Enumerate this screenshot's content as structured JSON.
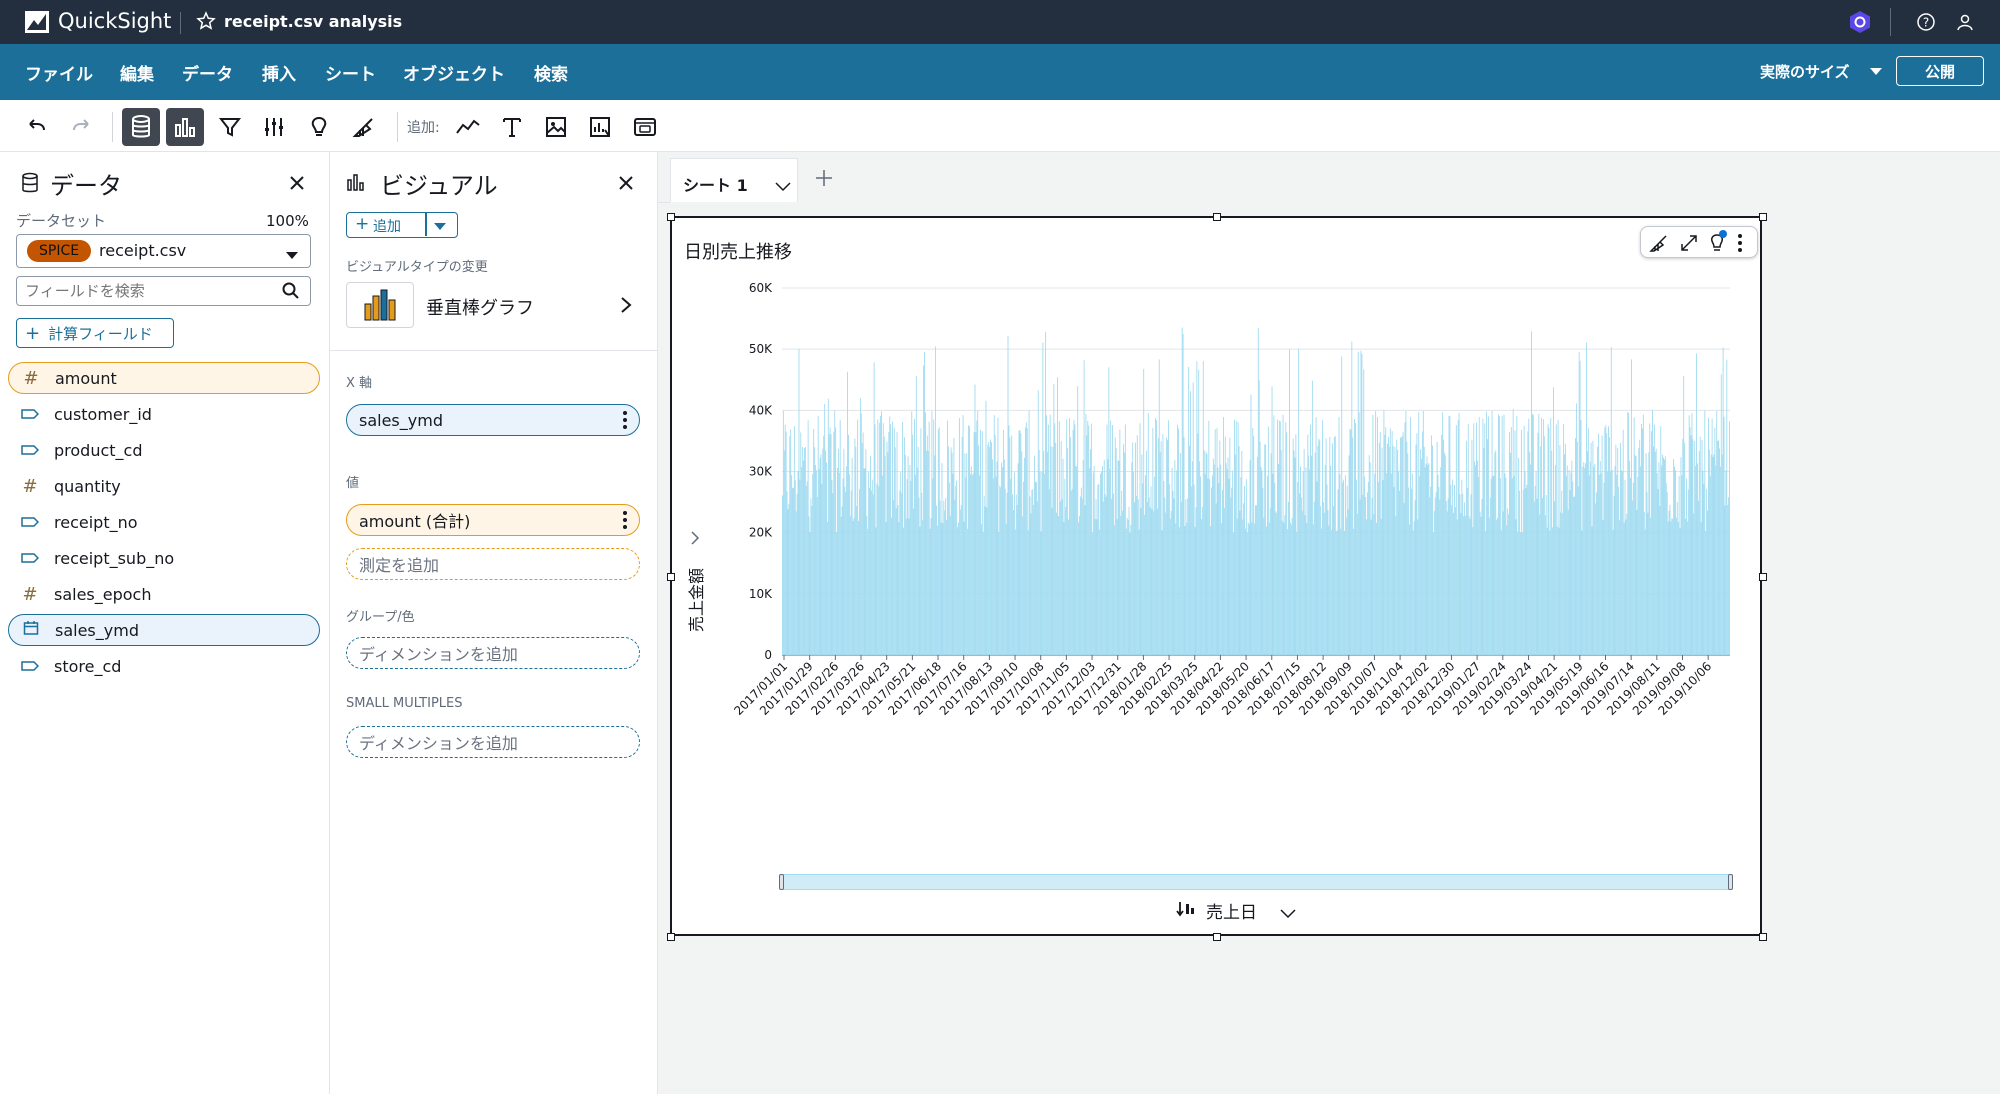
{
  "topbar": {
    "app_name": "QuickSight",
    "analysis_title": "receipt.csv analysis"
  },
  "menu": {
    "items": [
      "ファイル",
      "編集",
      "データ",
      "挿入",
      "シート",
      "オブジェクト",
      "検索"
    ],
    "size_label": "実際のサイズ",
    "publish_label": "公開"
  },
  "toolbar": {
    "add_label": "追加:"
  },
  "data_panel": {
    "title": "データ",
    "dataset_label": "データセット",
    "dataset_percent": "100%",
    "spice_badge": "SPICE",
    "dataset_name": "receipt.csv",
    "search_placeholder": "フィールドを検索",
    "calc_field_label": "計算フィールド",
    "fields": [
      {
        "name": "amount",
        "type": "measure"
      },
      {
        "name": "customer_id",
        "type": "dimension"
      },
      {
        "name": "product_cd",
        "type": "dimension"
      },
      {
        "name": "quantity",
        "type": "measure"
      },
      {
        "name": "receipt_no",
        "type": "dimension"
      },
      {
        "name": "receipt_sub_no",
        "type": "dimension"
      },
      {
        "name": "sales_epoch",
        "type": "measure"
      },
      {
        "name": "sales_ymd",
        "type": "date"
      },
      {
        "name": "store_cd",
        "type": "dimension"
      }
    ]
  },
  "visual_panel": {
    "title": "ビジュアル",
    "add_label": "追加",
    "change_type_label": "ビジュアルタイプの変更",
    "visual_type": "垂直棒グラフ",
    "x_axis_label": "X 軸",
    "x_axis_field": "sales_ymd",
    "value_label": "値",
    "value_field": "amount (合計)",
    "add_measure": "測定を追加",
    "group_label": "グループ/色",
    "add_dimension": "ディメンションを追加",
    "small_multiples_label": "SMALL MULTIPLES",
    "add_dimension_2": "ディメンションを追加"
  },
  "sheet": {
    "tab_label": "シート 1"
  },
  "chart_data": {
    "type": "bar",
    "title": "日別売上推移",
    "ylabel": "売上金額",
    "xlabel": "売上日",
    "ylim": [
      0,
      60000
    ],
    "y_ticks": [
      "0",
      "10K",
      "20K",
      "30K",
      "40K",
      "50K",
      "60K"
    ],
    "x_ticks": [
      "2017/01/01",
      "2017/01/29",
      "2017/02/26",
      "2017/03/26",
      "2017/04/23",
      "2017/05/21",
      "2017/06/18",
      "2017/07/16",
      "2017/08/13",
      "2017/09/10",
      "2017/10/08",
      "2017/11/05",
      "2017/12/03",
      "2017/12/31",
      "2018/01/28",
      "2018/02/25",
      "2018/03/25",
      "2018/04/22",
      "2018/05/20",
      "2018/06/17",
      "2018/07/15",
      "2018/08/12",
      "2018/09/09",
      "2018/10/07",
      "2018/11/04",
      "2018/12/02",
      "2018/12/30",
      "2019/01/27",
      "2019/02/24",
      "2019/03/24",
      "2019/04/21",
      "2019/05/19",
      "2019/06/16",
      "2019/07/14",
      "2019/08/11",
      "2019/09/08",
      "2019/10/06"
    ],
    "series_color": "#a3dcf1",
    "approx_daily_range": [
      20000,
      54000
    ],
    "typical_daily_value": 30000
  }
}
